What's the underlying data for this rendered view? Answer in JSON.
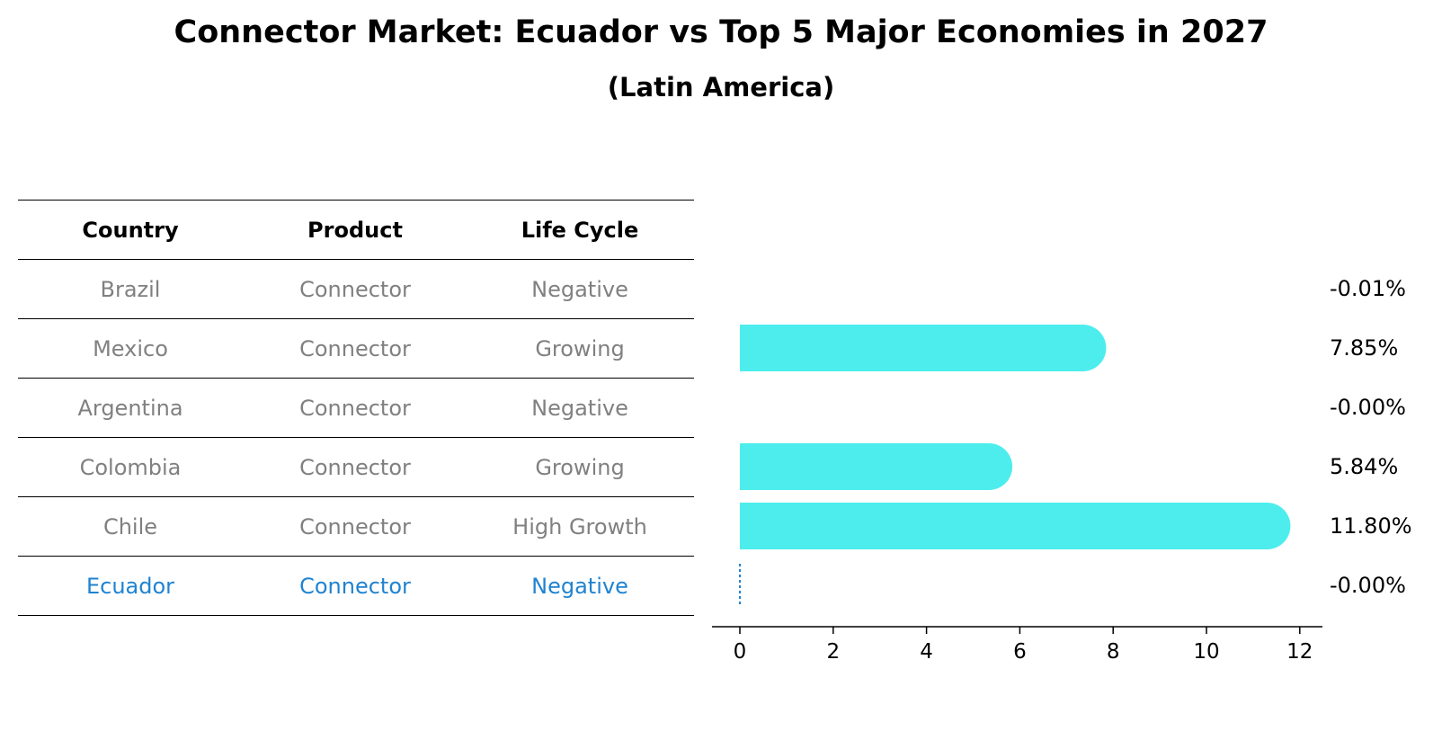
{
  "title": "Connector Market: Ecuador vs Top 5 Major Economies in 2027",
  "subtitle": "(Latin America)",
  "table": {
    "headers": [
      "Country",
      "Product",
      "Life Cycle"
    ],
    "rows": [
      {
        "country": "Brazil",
        "product": "Connector",
        "life_cycle": "Negative"
      },
      {
        "country": "Mexico",
        "product": "Connector",
        "life_cycle": "Growing"
      },
      {
        "country": "Argentina",
        "product": "Connector",
        "life_cycle": "Negative"
      },
      {
        "country": "Colombia",
        "product": "Connector",
        "life_cycle": "Growing"
      },
      {
        "country": "Chile",
        "product": "Connector",
        "life_cycle": "High Growth"
      },
      {
        "country": "Ecuador",
        "product": "Connector",
        "life_cycle": "Negative"
      }
    ],
    "highlight_row": "Ecuador"
  },
  "colors": {
    "bar": "#4deded",
    "highlight": "#1f83d1",
    "muted_text": "#808080"
  },
  "chart_data": {
    "type": "bar",
    "orientation": "horizontal",
    "categories": [
      "Brazil",
      "Mexico",
      "Argentina",
      "Colombia",
      "Chile",
      "Ecuador"
    ],
    "values": [
      -0.01,
      7.85,
      -0.0,
      5.84,
      11.8,
      -0.0
    ],
    "value_labels": [
      "-0.01%",
      "7.85%",
      "-0.00%",
      "5.84%",
      "11.80%",
      "-0.00%"
    ],
    "x_ticks": [
      "0",
      "2",
      "4",
      "6",
      "8",
      "10",
      "12"
    ],
    "xlim": [
      -0.6,
      12.4
    ],
    "xlabel": "",
    "ylabel": "",
    "grid": false
  }
}
